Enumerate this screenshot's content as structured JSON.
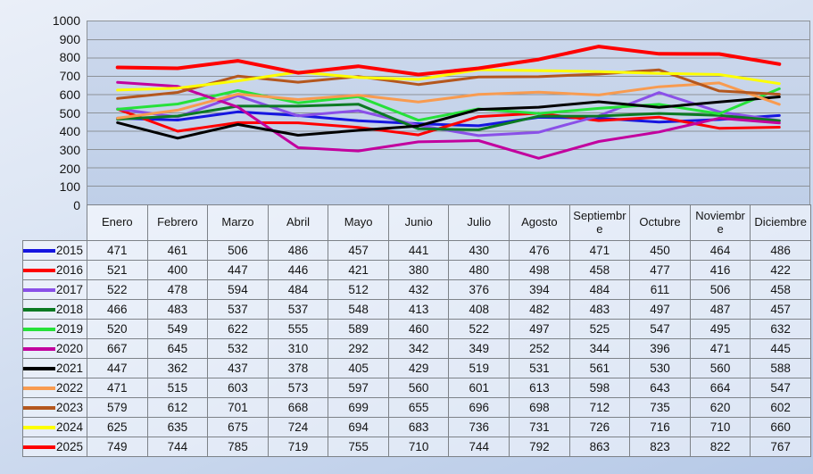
{
  "chart_data": {
    "type": "line",
    "title": "",
    "xlabel": "",
    "ylabel": "",
    "categories": [
      "Enero",
      "Febrero",
      "Marzo",
      "Abril",
      "Mayo",
      "Junio",
      "Julio",
      "Agosto",
      "Septiembre",
      "Octubre",
      "Noviembre",
      "Diciembre"
    ],
    "series": [
      {
        "name": "2015",
        "color": "#1616e0",
        "values": [
          471,
          461,
          506,
          486,
          457,
          441,
          430,
          476,
          471,
          450,
          464,
          486
        ]
      },
      {
        "name": "2016",
        "color": "#fe0000",
        "values": [
          521,
          400,
          447,
          446,
          421,
          380,
          480,
          498,
          458,
          477,
          416,
          422
        ]
      },
      {
        "name": "2017",
        "color": "#8a50e8",
        "values": [
          522,
          478,
          594,
          484,
          512,
          432,
          376,
          394,
          484,
          611,
          506,
          458
        ]
      },
      {
        "name": "2018",
        "color": "#0c7a23",
        "values": [
          466,
          483,
          537,
          537,
          548,
          413,
          408,
          482,
          483,
          497,
          487,
          457
        ]
      },
      {
        "name": "2019",
        "color": "#26e13a",
        "values": [
          520,
          549,
          622,
          555,
          589,
          460,
          522,
          497,
          525,
          547,
          495,
          632
        ]
      },
      {
        "name": "2020",
        "color": "#c2009e",
        "values": [
          667,
          645,
          532,
          310,
          292,
          342,
          349,
          252,
          344,
          396,
          471,
          445
        ]
      },
      {
        "name": "2021",
        "color": "#000000",
        "values": [
          447,
          362,
          437,
          378,
          405,
          429,
          519,
          531,
          561,
          530,
          560,
          588
        ]
      },
      {
        "name": "2022",
        "color": "#f89b50",
        "values": [
          471,
          515,
          603,
          573,
          597,
          560,
          601,
          613,
          598,
          643,
          664,
          547
        ]
      },
      {
        "name": "2023",
        "color": "#b4571e",
        "values": [
          579,
          612,
          701,
          668,
          699,
          655,
          696,
          698,
          712,
          735,
          620,
          602
        ]
      },
      {
        "name": "2024",
        "color": "#fdfe00",
        "values": [
          625,
          635,
          675,
          724,
          694,
          683,
          736,
          731,
          726,
          716,
          710,
          660
        ]
      },
      {
        "name": "2025",
        "color": "#fe0000",
        "values": [
          749,
          744,
          785,
          719,
          755,
          710,
          744,
          792,
          863,
          823,
          822,
          767
        ]
      }
    ],
    "ylim": [
      0,
      1000
    ],
    "ytick_step": 100,
    "yticks": [
      1000,
      900,
      800,
      700,
      600,
      500,
      400,
      300,
      200,
      100,
      0
    ],
    "grid": true,
    "legend_position": "table-left-column",
    "plot_background": "#c5d3ea",
    "gridline_color": "#8d9298"
  }
}
